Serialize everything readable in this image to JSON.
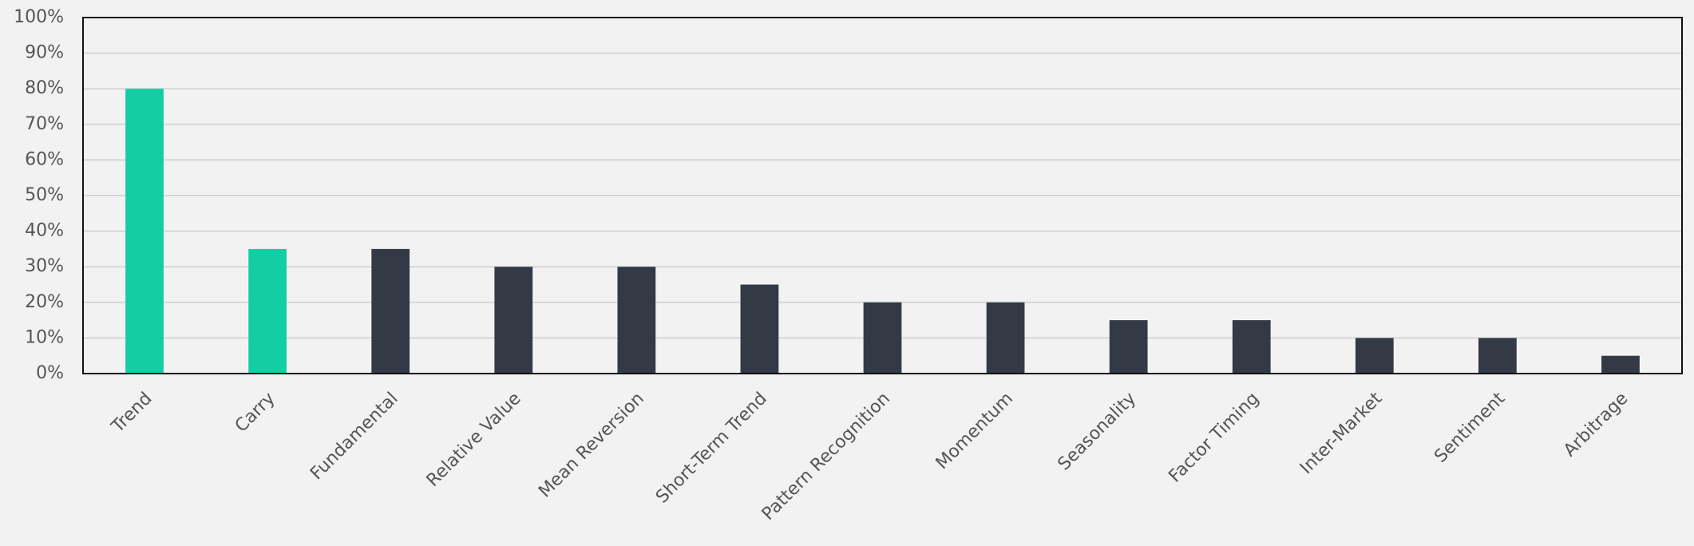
{
  "chart_data": {
    "type": "bar",
    "categories": [
      "Trend",
      "Carry",
      "Fundamental",
      "Relative Value",
      "Mean Reversion",
      "Short-Term Trend",
      "Pattern Recognition",
      "Momentum",
      "Seasonality",
      "Factor Timing",
      "Inter-Market",
      "Sentiment",
      "Arbitrage"
    ],
    "values": [
      80,
      35,
      35,
      30,
      30,
      25,
      20,
      20,
      15,
      15,
      10,
      10,
      5
    ],
    "colors": [
      "#14cea3",
      "#14cea3",
      "#333a46",
      "#333a46",
      "#333a46",
      "#333a46",
      "#333a46",
      "#333a46",
      "#333a46",
      "#333a46",
      "#333a46",
      "#333a46",
      "#333a46"
    ],
    "ylim": [
      0,
      100
    ],
    "yticks": [
      {
        "value": 0,
        "label": "0%"
      },
      {
        "value": 10,
        "label": "10%"
      },
      {
        "value": 20,
        "label": "20%"
      },
      {
        "value": 30,
        "label": "30%"
      },
      {
        "value": 40,
        "label": "40%"
      },
      {
        "value": 50,
        "label": "50%"
      },
      {
        "value": 60,
        "label": "60%"
      },
      {
        "value": 70,
        "label": "70%"
      },
      {
        "value": 80,
        "label": "80%"
      },
      {
        "value": 90,
        "label": "90%"
      },
      {
        "value": 100,
        "label": "100%"
      }
    ],
    "grid": true
  }
}
